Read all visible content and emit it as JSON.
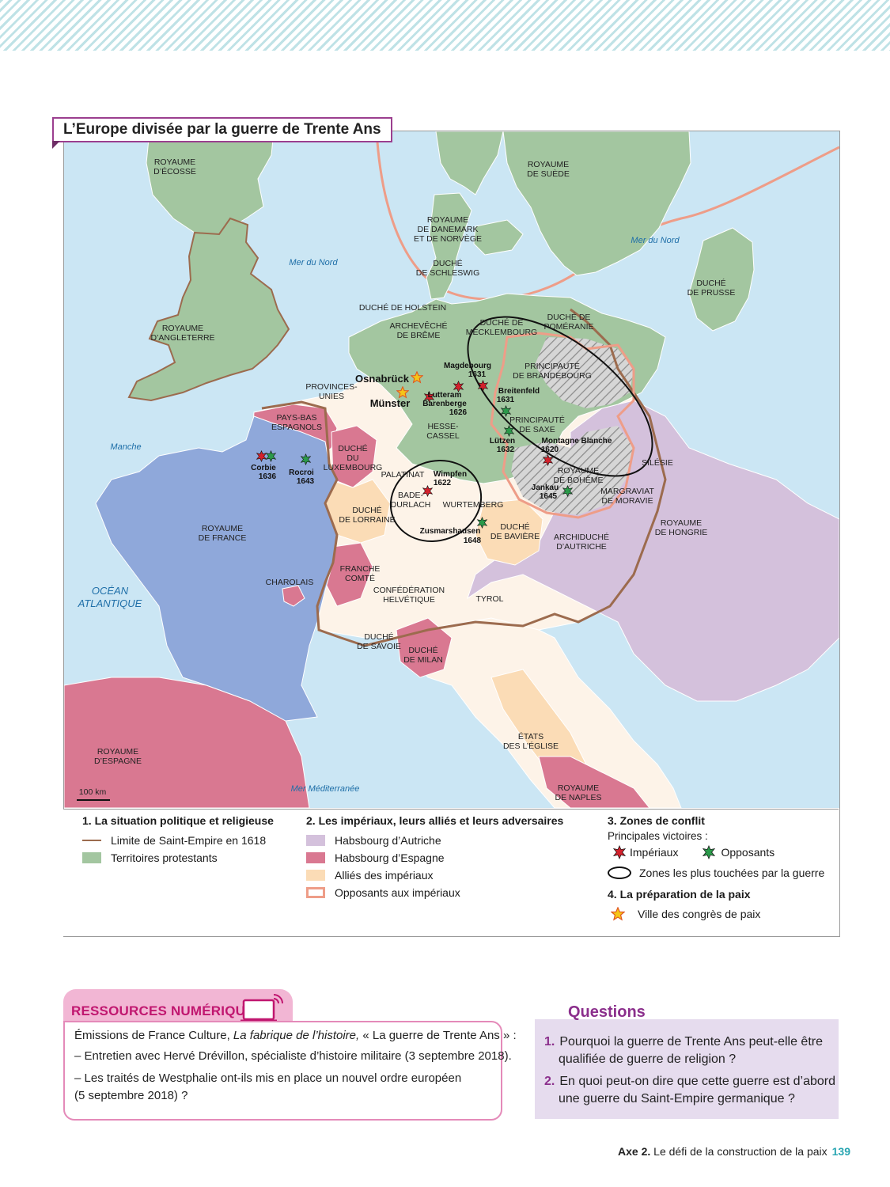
{
  "map": {
    "title": "L’Europe divisée par la guerre de Trente Ans",
    "scale": "100 km",
    "regions": {
      "ecosse": "ROYAUME D’ÉCOSSE",
      "angleterre": "ROYAUME D’ANGLETERRE",
      "suede": "ROYAUME DE SUÈDE",
      "danemark": "ROYAUME DE DANEMARK ET DE NORVÈGE",
      "schleswig": "DUCHÉ DE SCHLESWIG",
      "prusse": "DUCHÉ DE PRUSSE",
      "holstein": "DUCHÉ DE HOLSTEIN",
      "breme": "ARCHEVÊCHÉ DE BRÊME",
      "mecklembourg": "DUCHÉ DE MECKLEMBOURG",
      "pomeranie": "DUCHÉ DE POMÉRANIE",
      "brandebourg": "PRINCIPAUTÉ DE BRANDEBOURG",
      "provinces_unies": "PROVINCES-UNIES",
      "pays_bas": "PAYS-BAS ESPAGNOLS",
      "hesse": "HESSE-CASSEL",
      "saxe": "PRINCIPAUTÉ DE SAXE",
      "silesie": "SILÉSIE",
      "luxembourg": "DUCHÉ DU LUXEMBOURG",
      "palatinat": "PALATINAT",
      "bade": "BADE-DURLACH",
      "wurtemberg": "WURTEMBERG",
      "boheme": "ROYAUME DE BOHÊME",
      "moravie": "MARGRAVIAT DE MORAVIE",
      "lorraine": "DUCHÉ DE LORRAINE",
      "baviere": "DUCHÉ DE BAVIÈRE",
      "hongrie": "ROYAUME DE HONGRIE",
      "autriche": "ARCHIDUCHÉ D’AUTRICHE",
      "france": "ROYAUME DE FRANCE",
      "franche_comte": "FRANCHE COMTÉ",
      "charolais": "CHAROLAIS",
      "helvetique": "CONFÉDÉRATION HELVÉTIQUE",
      "tyrol": "TYROL",
      "savoie": "DUCHÉ DE SAVOIE",
      "milan": "DUCHÉ DE MILAN",
      "eglise": "ÉTATS DES L’ÉGLISE",
      "espagne": "ROYAUME D’ESPAGNE",
      "naples": "ROYAUME DE NAPLES"
    },
    "seas": {
      "nord_w": "Mer du Nord",
      "nord_e": "Mer du Nord",
      "manche": "Manche",
      "atlantique": "OCÉAN ATLANTIQUE",
      "mediterranee": "Mer Méditerranée"
    },
    "cities": {
      "osnabruck": "Osnabrück",
      "munster": "Münster"
    },
    "battles": {
      "magdebourg": {
        "name": "Magdebourg",
        "year": "1631"
      },
      "breitenfeld": {
        "name": "Breitenfeld",
        "year": "1631"
      },
      "lutter": {
        "name": "Lutteram Barenberge",
        "year": "1626"
      },
      "lutzen": {
        "name": "Lützen",
        "year": "1632"
      },
      "montagne": {
        "name": "Montagne Blanche",
        "year": "1620"
      },
      "jankau": {
        "name": "Jankau",
        "year": "1645"
      },
      "corbie": {
        "name": "Corbie",
        "year": "1636"
      },
      "rocroi": {
        "name": "Rocroi",
        "year": "1643"
      },
      "wimpfen": {
        "name": "Wimpfen",
        "year": "1622"
      },
      "zusmarshausen": {
        "name": "Zusmarshausen",
        "year": "1648"
      }
    }
  },
  "legend": {
    "s1": {
      "heading": "1. La situation politique et religieuse",
      "items": [
        "Limite de Saint-Empire en 1618",
        "Territoires protestants"
      ]
    },
    "s2": {
      "heading": "2. Les impériaux, leurs alliés et leurs adversaires",
      "items": [
        "Habsbourg d’Autriche",
        "Habsbourg d’Espagne",
        "Alliés des impériaux",
        "Opposants aux impériaux"
      ]
    },
    "s3": {
      "heading": "3. Zones de conflit",
      "sub": "Principales victoires :",
      "imperiaux": "Impériaux",
      "opposants": "Opposants",
      "zones": "Zones les plus touchées par la guerre"
    },
    "s4": {
      "heading": "4. La préparation de la paix",
      "item": "Ville des congrès de paix"
    }
  },
  "colors": {
    "sea": "#cbe6f4",
    "protestant": "#a3c6a0",
    "austria": "#d4c1dc",
    "spain": "#d97891",
    "allies": "#fbdcb6",
    "france": "#8fa8da",
    "empire_border": "#9c6b4e",
    "opponents": "#ee9d88"
  },
  "resources": {
    "title": "RESSOURCES NUMÉRIQUES",
    "line1_prefix": "Émissions de France Culture, ",
    "line1_title": "La fabrique de l’histoire,",
    "line1_suffix": " « La guerre de Trente Ans » :",
    "line2": "– Entretien avec Hervé Drévillon, spécialiste d’histoire militaire (3 septembre 2018).",
    "line3": "– Les traités de Westphalie ont-ils mis en place un nouvel ordre européen",
    "line4": "(5 septembre 2018) ?"
  },
  "questions": {
    "title": "Questions",
    "items": [
      {
        "num": "1.",
        "line1": "Pourquoi la guerre de Trente Ans peut-elle être",
        "line2": "qualifiée de guerre de religion ?"
      },
      {
        "num": "2.",
        "line1": "En quoi peut-on dire que cette guerre est d’abord",
        "line2": "une guerre du Saint-Empire germanique ?"
      }
    ]
  },
  "footer": {
    "axe": "Axe 2.",
    "text": " Le défi de la construction de la paix",
    "page": "139"
  }
}
